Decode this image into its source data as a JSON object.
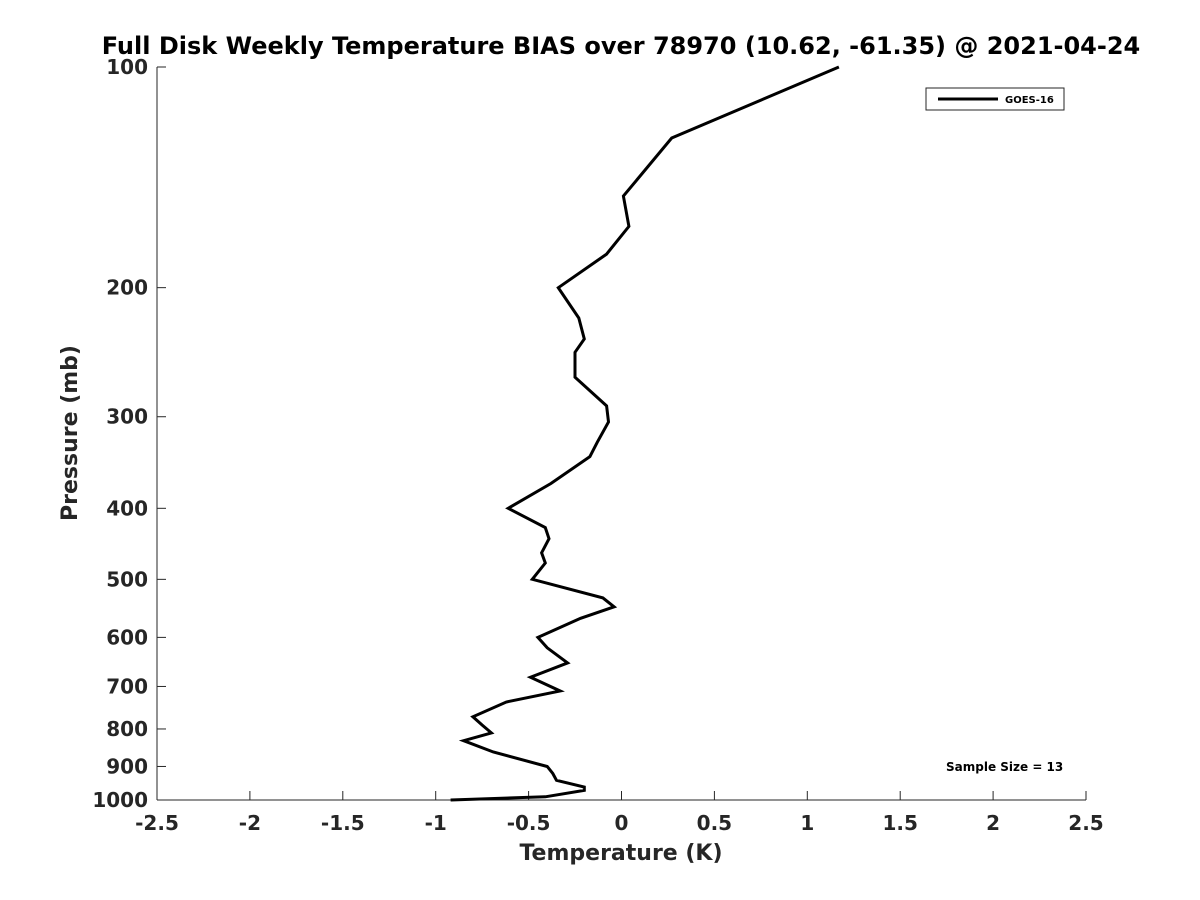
{
  "chart_data": {
    "type": "line",
    "title": "Full Disk Weekly Temperature BIAS over 78970 (10.62, -61.35) @ 2021-04-24",
    "xlabel": "Temperature (K)",
    "ylabel": "Pressure (mb)",
    "xlim": [
      -2.5,
      2.5
    ],
    "ylim": [
      100,
      1000
    ],
    "yscale": "log",
    "y_reversed": true,
    "grid": false,
    "legend_position": "top-right",
    "x_ticks": [
      -2.5,
      -2,
      -1.5,
      -1,
      -0.5,
      0,
      0.5,
      1,
      1.5,
      2,
      2.5
    ],
    "x_tick_labels": [
      "-2.5",
      "-2",
      "-1.5",
      "-1",
      "-0.5",
      "0",
      "0.5",
      "1",
      "1.5",
      "2",
      "2.5"
    ],
    "y_ticks": [
      100,
      200,
      300,
      400,
      500,
      600,
      700,
      800,
      900,
      1000
    ],
    "y_tick_labels": [
      "100",
      "200",
      "300",
      "400",
      "500",
      "600",
      "700",
      "800",
      "900",
      "1000"
    ],
    "series": [
      {
        "name": "GOES-16",
        "color": "#000000",
        "points": [
          [
            1.17,
            100
          ],
          [
            0.27,
            125
          ],
          [
            0.01,
            150
          ],
          [
            0.04,
            165
          ],
          [
            -0.08,
            180
          ],
          [
            -0.34,
            200
          ],
          [
            -0.23,
            220
          ],
          [
            -0.2,
            235
          ],
          [
            -0.25,
            245
          ],
          [
            -0.25,
            265
          ],
          [
            -0.08,
            290
          ],
          [
            -0.07,
            305
          ],
          [
            -0.13,
            325
          ],
          [
            -0.17,
            340
          ],
          [
            -0.38,
            370
          ],
          [
            -0.61,
            400
          ],
          [
            -0.41,
            425
          ],
          [
            -0.39,
            440
          ],
          [
            -0.43,
            460
          ],
          [
            -0.41,
            475
          ],
          [
            -0.48,
            500
          ],
          [
            -0.1,
            530
          ],
          [
            -0.04,
            545
          ],
          [
            -0.22,
            565
          ],
          [
            -0.45,
            600
          ],
          [
            -0.4,
            620
          ],
          [
            -0.29,
            650
          ],
          [
            -0.49,
            680
          ],
          [
            -0.33,
            710
          ],
          [
            -0.62,
            735
          ],
          [
            -0.8,
            770
          ],
          [
            -0.75,
            790
          ],
          [
            -0.7,
            810
          ],
          [
            -0.85,
            830
          ],
          [
            -0.69,
            860
          ],
          [
            -0.4,
            900
          ],
          [
            -0.37,
            920
          ],
          [
            -0.35,
            940
          ],
          [
            -0.2,
            960
          ],
          [
            -0.2,
            970
          ],
          [
            -0.41,
            990
          ],
          [
            -0.92,
            1000
          ]
        ]
      }
    ],
    "legend_entries": [
      "GOES-16"
    ],
    "annotations": [
      "Sample Size = 13"
    ]
  }
}
